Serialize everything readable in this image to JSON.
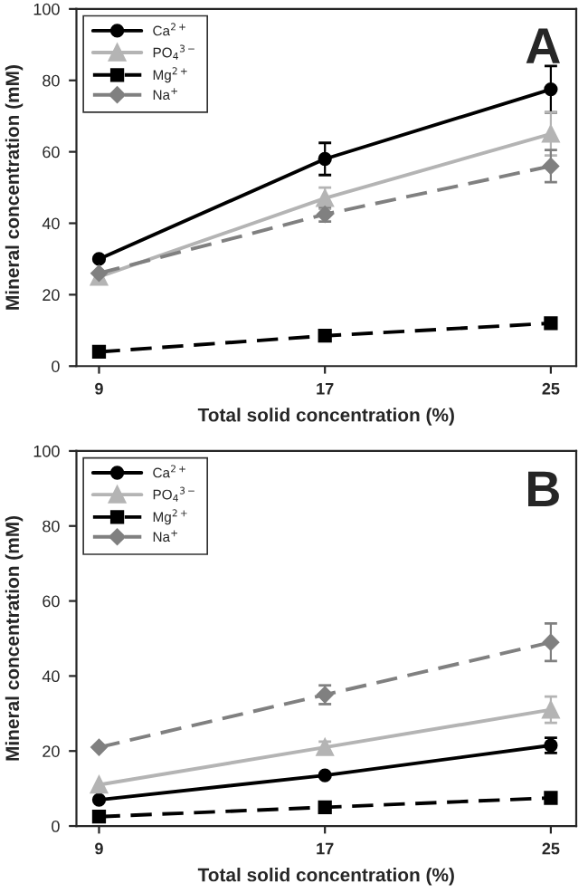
{
  "chart_data": [
    {
      "type": "line",
      "x": [
        9,
        17,
        25
      ],
      "xlim": [
        8.2,
        25.9
      ],
      "xticks": [
        9,
        17,
        25
      ],
      "ylim": [
        0,
        100
      ],
      "yticks": [
        0,
        20,
        40,
        60,
        80,
        100
      ],
      "xlabel": "Total solid concentration (%)",
      "ylabel": "Mineral concentration (mM)",
      "annotations": [
        "A"
      ],
      "legend": "top left",
      "grid": false,
      "series": [
        {
          "name": "Ca$^{2+}$",
          "color": "#000000",
          "marker": "circle",
          "line_style": "solid",
          "values": [
            30,
            58,
            77.5
          ],
          "errors": [
            null,
            4.5,
            6.5
          ]
        },
        {
          "name": "PO$_{4}$$^{3−}$",
          "color": "#b4b4b4",
          "marker": "triangle",
          "line_style": "solid",
          "values": [
            25,
            47,
            65
          ],
          "errors": [
            null,
            3,
            6
          ]
        },
        {
          "name": "Mg$^{2+}$",
          "color": "#000000",
          "marker": "square",
          "line_style": "dashed",
          "values": [
            4,
            8.5,
            12
          ],
          "errors": [
            null,
            null,
            null
          ]
        },
        {
          "name": "Na$^{+}$",
          "color": "#808080",
          "marker": "diamond",
          "line_style": "dashed",
          "values": [
            26,
            42.5,
            56
          ],
          "errors": [
            null,
            2,
            4.5
          ]
        }
      ]
    },
    {
      "type": "line",
      "x": [
        9,
        17,
        25
      ],
      "xlim": [
        8.2,
        25.9
      ],
      "xticks": [
        9,
        17,
        25
      ],
      "ylim": [
        0,
        100
      ],
      "yticks": [
        0,
        20,
        40,
        60,
        80,
        100
      ],
      "xlabel": "Total solid concentration (%)",
      "ylabel": "Mineral concentration (mM)",
      "annotations": [
        "B"
      ],
      "legend": "top left",
      "grid": false,
      "series": [
        {
          "name": "Ca$^{2+}$",
          "color": "#000000",
          "marker": "circle",
          "line_style": "solid",
          "values": [
            7,
            13.5,
            21.5
          ],
          "errors": [
            null,
            null,
            2
          ]
        },
        {
          "name": "PO$_{4}$$^{3−}$",
          "color": "#b4b4b4",
          "marker": "triangle",
          "line_style": "solid",
          "values": [
            11,
            21,
            31
          ],
          "errors": [
            null,
            1.5,
            3.5
          ]
        },
        {
          "name": "Mg$^{2+}$",
          "color": "#000000",
          "marker": "square",
          "line_style": "dashed",
          "values": [
            2.5,
            5,
            7.5
          ],
          "errors": [
            null,
            null,
            null
          ]
        },
        {
          "name": "Na$^{+}$",
          "color": "#808080",
          "marker": "diamond",
          "line_style": "dashed",
          "values": [
            21,
            35,
            49
          ],
          "errors": [
            null,
            2.5,
            5
          ]
        }
      ]
    }
  ]
}
